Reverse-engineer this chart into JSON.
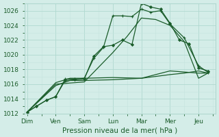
{
  "xlabel": "Pression niveau de la mer( hPa )",
  "ylim": [
    1012,
    1027
  ],
  "yticks": [
    1012,
    1014,
    1016,
    1018,
    1020,
    1022,
    1024,
    1026
  ],
  "xtick_labels": [
    "Dim",
    "Ven",
    "Sam",
    "Lun",
    "Mar",
    "Mer",
    "Jeu"
  ],
  "xtick_positions": [
    0,
    1,
    2,
    3,
    4,
    5,
    6
  ],
  "xlim": [
    -0.1,
    6.6
  ],
  "background_color": "#d4ede8",
  "grid_major_color": "#b0d8d0",
  "grid_minor_color": "#c4e4de",
  "line_color": "#1a5c2a",
  "line1_x": [
    0,
    0.33,
    0.67,
    1.0,
    1.33,
    1.67,
    2.0,
    2.33,
    2.67,
    3.0,
    3.33,
    3.67,
    4.0,
    4.33,
    4.67,
    5.0,
    5.33,
    5.67,
    6.0,
    6.33
  ],
  "line1_y": [
    1012.2,
    1013.0,
    1013.8,
    1014.3,
    1016.5,
    1016.6,
    1016.7,
    1019.8,
    1021.1,
    1021.3,
    1022.0,
    1021.4,
    1027.0,
    1026.5,
    1026.2,
    1024.3,
    1022.0,
    1021.5,
    1018.2,
    1017.8
  ],
  "line2_x": [
    0,
    0.33,
    0.67,
    1.0,
    1.33,
    1.67,
    2.0,
    2.33,
    2.67,
    3.0,
    3.33,
    3.67,
    4.0,
    4.33,
    4.67,
    5.0,
    5.5,
    6.0,
    6.33
  ],
  "line2_y": [
    1012.2,
    1013.0,
    1013.8,
    1014.3,
    1016.7,
    1016.7,
    1016.8,
    1019.5,
    1021.0,
    1025.3,
    1025.3,
    1025.2,
    1026.2,
    1025.8,
    1026.0,
    1024.2,
    1022.3,
    1018.5,
    1017.6
  ],
  "line3_x": [
    0,
    1.0,
    1.5,
    2.0,
    3.0,
    4.0,
    5.0,
    5.5,
    6.0,
    6.33
  ],
  "line3_y": [
    1012.2,
    1016.2,
    1016.8,
    1016.8,
    1016.9,
    1016.8,
    1017.3,
    1017.5,
    1017.8,
    1017.5
  ],
  "line4_x": [
    0,
    1.0,
    1.5,
    2.0,
    3.0,
    4.0,
    5.0,
    6.0,
    6.33
  ],
  "line4_y": [
    1012.2,
    1015.8,
    1016.5,
    1016.5,
    1016.6,
    1016.8,
    1017.8,
    1017.5,
    1017.5
  ],
  "line5_x": [
    0,
    1.0,
    2.0,
    3.0,
    3.5,
    4.0,
    4.5,
    5.0,
    5.5,
    6.0,
    6.33
  ],
  "line5_y": [
    1012.2,
    1016.0,
    1016.3,
    1020.3,
    1022.5,
    1025.0,
    1024.8,
    1024.0,
    1021.8,
    1016.8,
    1017.5
  ]
}
